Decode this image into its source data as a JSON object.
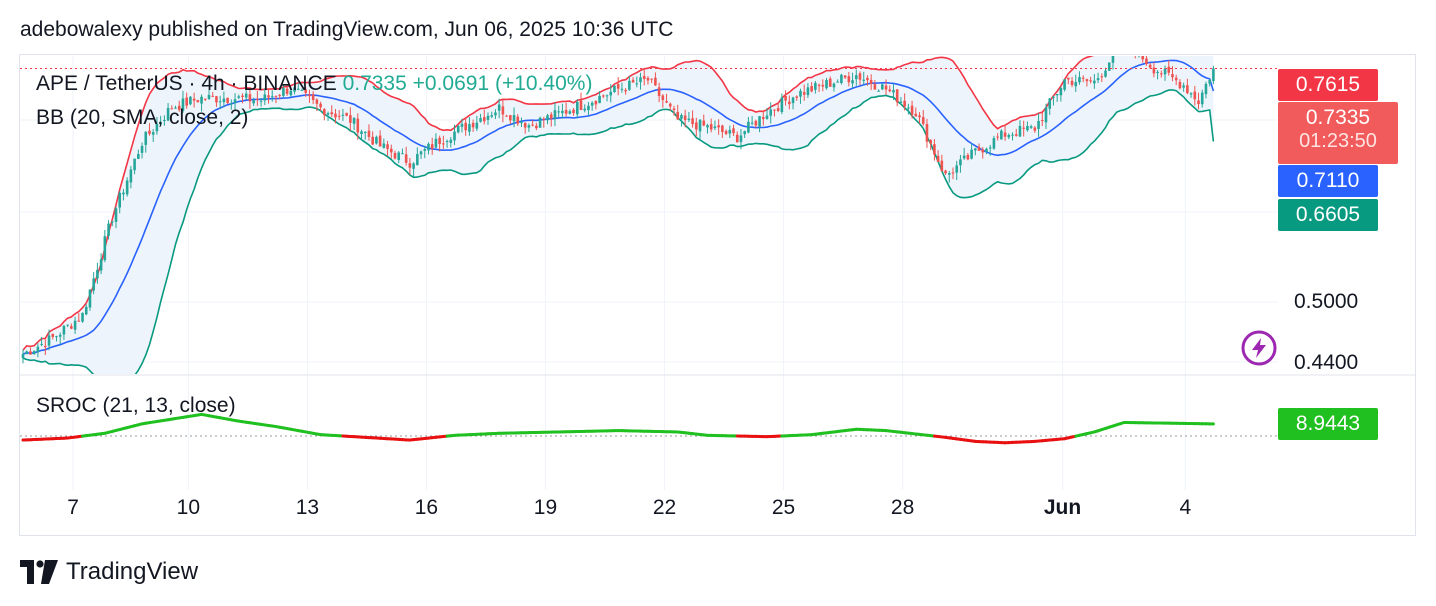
{
  "publisher_line": "adebowalexy published on TradingView.com, Jun 06, 2025 10:36 UTC",
  "legend": {
    "symbol": "APE / TetherUS · 4h · BINANCE",
    "last": "0.7335",
    "change": "+0.0691 (+10.40%)",
    "bb": "BB (20, SMA, close, 2)",
    "sroc": "SROC (21, 13, close)"
  },
  "price_tags": {
    "upper": {
      "value": "0.7615",
      "color": "#f23645"
    },
    "price": {
      "value": "0.7335",
      "countdown": "01:23:50",
      "color": "#f15b5b"
    },
    "basis": {
      "value": "0.7110",
      "color": "#2962ff"
    },
    "lower": {
      "value": "0.6605",
      "color": "#089981"
    },
    "sroc": {
      "value": "8.9443",
      "color": "#21c021"
    }
  },
  "brand": "TradingView",
  "icons": {
    "logo": "tradingview-logo-icon",
    "flash": "lightning-icon"
  },
  "colors": {
    "up": "#26a69a",
    "down": "#ef5350",
    "upper": "#f23645",
    "basis": "#2962ff",
    "lower": "#089981",
    "band_fill": "#eef4fb",
    "sroc_pos": "#21c021",
    "sroc_neg": "#e81010"
  },
  "chart_data": {
    "type": "candlestick",
    "y_axis_ticks": [
      "0.5000",
      "0.4400"
    ],
    "x_axis_ticks": [
      {
        "label": "7",
        "bold": false
      },
      {
        "label": "10",
        "bold": false
      },
      {
        "label": "13",
        "bold": false
      },
      {
        "label": "16",
        "bold": false
      },
      {
        "label": "19",
        "bold": false
      },
      {
        "label": "22",
        "bold": false
      },
      {
        "label": "25",
        "bold": false
      },
      {
        "label": "28",
        "bold": false
      },
      {
        "label": "Jun",
        "bold": true
      },
      {
        "label": "4",
        "bold": false
      }
    ],
    "close_anchors": [
      [
        0,
        0.448
      ],
      [
        8,
        0.464
      ],
      [
        16,
        0.487
      ],
      [
        24,
        0.585
      ],
      [
        32,
        0.66
      ],
      [
        40,
        0.695
      ],
      [
        48,
        0.704
      ],
      [
        56,
        0.704
      ],
      [
        64,
        0.702
      ],
      [
        72,
        0.714
      ],
      [
        80,
        0.694
      ],
      [
        88,
        0.682
      ],
      [
        96,
        0.656
      ],
      [
        104,
        0.64
      ],
      [
        112,
        0.662
      ],
      [
        120,
        0.678
      ],
      [
        128,
        0.694
      ],
      [
        136,
        0.677
      ],
      [
        144,
        0.688
      ],
      [
        152,
        0.7
      ],
      [
        160,
        0.713
      ],
      [
        168,
        0.722
      ],
      [
        176,
        0.682
      ],
      [
        184,
        0.675
      ],
      [
        192,
        0.665
      ],
      [
        200,
        0.69
      ],
      [
        208,
        0.708
      ],
      [
        216,
        0.718
      ],
      [
        224,
        0.727
      ],
      [
        232,
        0.713
      ],
      [
        240,
        0.69
      ],
      [
        248,
        0.626
      ],
      [
        256,
        0.65
      ],
      [
        264,
        0.668
      ],
      [
        272,
        0.674
      ],
      [
        280,
        0.722
      ],
      [
        288,
        0.72
      ],
      [
        296,
        0.762
      ],
      [
        304,
        0.734
      ],
      [
        312,
        0.717
      ],
      [
        316,
        0.701
      ],
      [
        320,
        0.7335
      ]
    ],
    "sroc_anchors": [
      [
        0,
        -3
      ],
      [
        12,
        -1.5
      ],
      [
        22,
        2
      ],
      [
        32,
        9
      ],
      [
        48,
        16
      ],
      [
        58,
        11
      ],
      [
        68,
        7
      ],
      [
        80,
        1
      ],
      [
        92,
        -1
      ],
      [
        104,
        -3
      ],
      [
        116,
        0.5
      ],
      [
        128,
        2
      ],
      [
        144,
        3
      ],
      [
        160,
        4
      ],
      [
        176,
        3
      ],
      [
        184,
        0.5
      ],
      [
        200,
        -0.5
      ],
      [
        212,
        1
      ],
      [
        224,
        5
      ],
      [
        232,
        4
      ],
      [
        248,
        -1
      ],
      [
        256,
        -4
      ],
      [
        264,
        -5
      ],
      [
        272,
        -4
      ],
      [
        280,
        -2
      ],
      [
        288,
        3
      ],
      [
        296,
        10
      ],
      [
        308,
        9.5
      ],
      [
        320,
        8.9443
      ]
    ],
    "current_price": 0.7335,
    "upper_band": 0.7615,
    "basis": 0.711,
    "lower_band": 0.6605,
    "sroc_last": 8.9443
  }
}
